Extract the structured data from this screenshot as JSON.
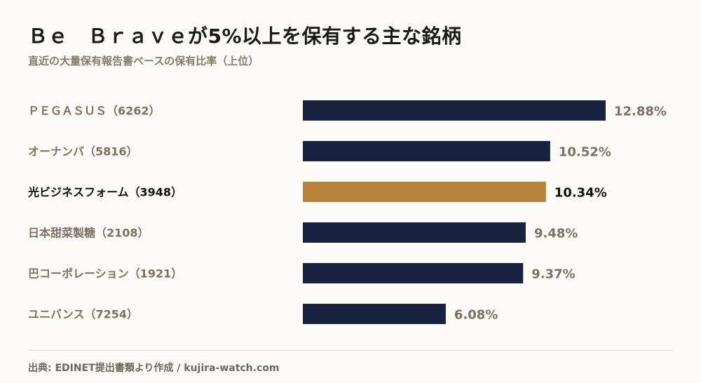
{
  "header": {
    "title": "Ｂｅ　Ｂｒａｖｅが5%以上を保有する主な銘柄",
    "subtitle": "直近の大量保有報告書ベースの保有比率（上位）"
  },
  "footer": {
    "source": "出典: EDINET提出書類より作成 / kujira-watch.com"
  },
  "colors": {
    "bar": "#172240",
    "highlight_bar": "#b8843b",
    "label": "#7d7063",
    "highlight_label": "#111111"
  },
  "chart_data": {
    "type": "bar",
    "orientation": "horizontal",
    "unit": "%",
    "categories": [
      "ＰＥＧＡＳＵＳ（6262）",
      "オーナンバ（5816）",
      "光ビジネスフォーム（3948）",
      "日本甜菜製糖（2108）",
      "巴コーポレーション（1921）",
      "ユニバンス（7254）"
    ],
    "values": [
      12.88,
      10.52,
      10.34,
      9.48,
      9.37,
      6.08
    ],
    "value_labels": [
      "12.88%",
      "10.52%",
      "10.34%",
      "9.48%",
      "9.37%",
      "6.08%"
    ],
    "highlight_index": 2,
    "xlim": [
      0,
      12.88
    ],
    "grid": false,
    "legend": "none"
  }
}
